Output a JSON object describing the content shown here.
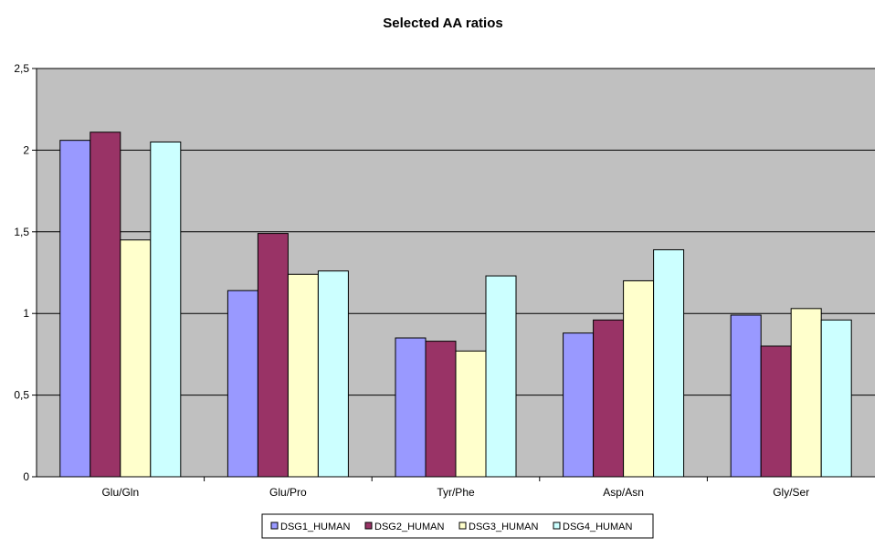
{
  "chart_data": {
    "type": "bar",
    "title": "Selected AA ratios",
    "xlabel": "",
    "ylabel": "",
    "categories": [
      "Glu/Gln",
      "Glu/Pro",
      "Tyr/Phe",
      "Asp/Asn",
      "Gly/Ser"
    ],
    "series": [
      {
        "name": "DSG1_HUMAN",
        "color": "#9999ff",
        "values": [
          2.06,
          1.14,
          0.85,
          0.88,
          0.99
        ]
      },
      {
        "name": "DSG2_HUMAN",
        "color": "#993366",
        "values": [
          2.11,
          1.49,
          0.83,
          0.96,
          0.8
        ]
      },
      {
        "name": "DSG3_HUMAN",
        "color": "#ffffcc",
        "values": [
          1.45,
          1.24,
          0.77,
          1.2,
          1.03
        ]
      },
      {
        "name": "DSG4_HUMAN",
        "color": "#ccffff",
        "values": [
          2.05,
          1.26,
          1.23,
          1.39,
          0.96
        ]
      }
    ],
    "ylim": [
      0,
      2.5
    ],
    "yticks": [
      "0",
      "0,5",
      "1",
      "1,5",
      "2",
      "2,5"
    ],
    "ytick_values": [
      0,
      0.5,
      1,
      1.5,
      2,
      2.5
    ],
    "grid": true,
    "plot_background": "#c0c0c0",
    "legend_position": "bottom"
  }
}
